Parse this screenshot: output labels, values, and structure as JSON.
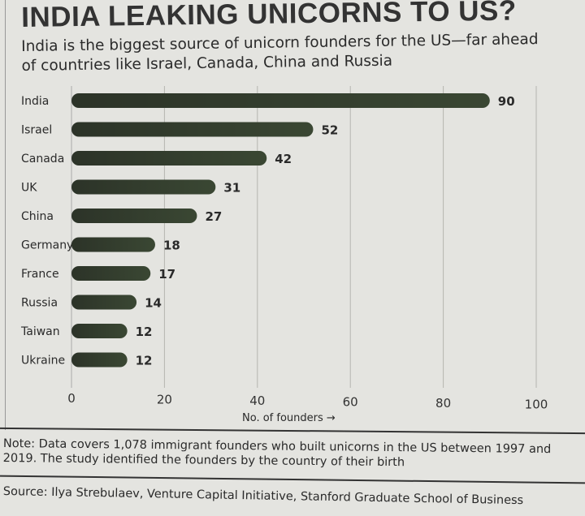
{
  "chart_data": {
    "type": "bar",
    "orientation": "horizontal",
    "title": "INDIA LEAKING UNICORNS TO US?",
    "subtitle": "India is the biggest source of unicorn founders for the US—far ahead of countries like Israel, Canada, China and Russia",
    "categories": [
      "India",
      "Israel",
      "Canada",
      "UK",
      "China",
      "Germany",
      "France",
      "Russia",
      "Taiwan",
      "Ukraine"
    ],
    "values": [
      90,
      52,
      42,
      31,
      27,
      18,
      17,
      14,
      12,
      12
    ],
    "xlabel": "No. of founders →",
    "xlim": [
      0,
      100
    ],
    "xticks": [
      0,
      20,
      40,
      60,
      80,
      100
    ],
    "grid": true,
    "bar_color": "#3a4733"
  },
  "note": "Note: Data covers 1,078 immigrant founders who built unicorns in the US between 1997 and 2019. The study identified the founders by the country of their birth",
  "source": "Source: Ilya Strebulaev, Venture Capital Initiative, Stanford Graduate School of Business"
}
